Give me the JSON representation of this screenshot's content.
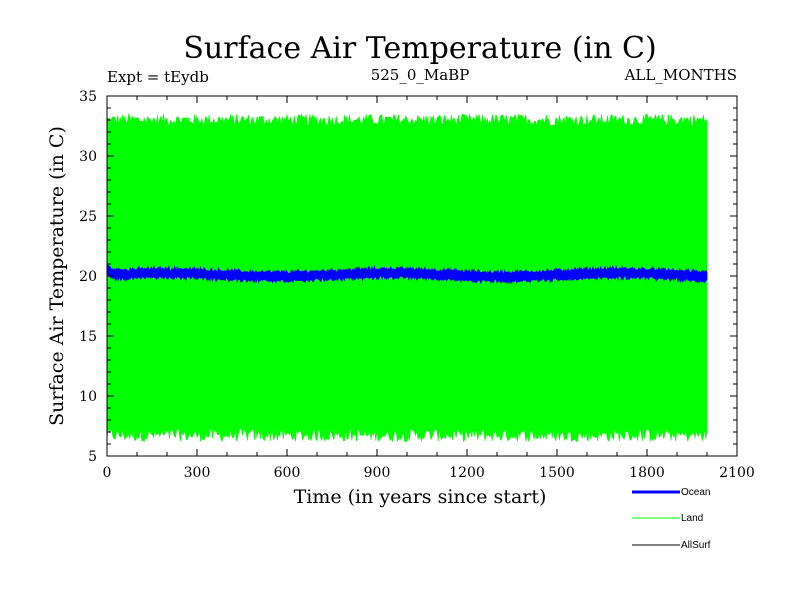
{
  "chart_data": {
    "type": "line",
    "title": "Surface Air Temperature (in C)",
    "experiment": "Expt = tEydb",
    "run_label": "525_0_MaBP",
    "season": "ALL_MONTHS",
    "xlabel": "Time (in years since start)",
    "ylabel": "Surface Air Temperature (in C)",
    "xlim": [
      0,
      2100
    ],
    "ylim": [
      5,
      35
    ],
    "x_ticks": [
      0,
      300,
      600,
      900,
      1200,
      1500,
      1800,
      2100
    ],
    "y_ticks": [
      5,
      10,
      15,
      20,
      25,
      30,
      35
    ],
    "x_tick_labels": [
      "0",
      "300",
      "600",
      "900",
      "1200",
      "1500",
      "1800",
      "2100"
    ],
    "y_tick_labels": [
      "5",
      "10",
      "15",
      "20",
      "25",
      "30",
      "35"
    ],
    "series": [
      {
        "name": "Land",
        "color": "#00ff00",
        "x_range": [
          0,
          2000
        ],
        "min_envelope": 6.8,
        "max_envelope": 33.4,
        "mean": 20.1
      },
      {
        "name": "Ocean",
        "color": "#0000ff",
        "x_range": [
          0,
          2000
        ],
        "start_value": 20.6,
        "min": 19.5,
        "max": 20.8,
        "mean": 20.1
      },
      {
        "name": "AllSurf",
        "color": "#000000",
        "x_range": [
          0,
          2000
        ],
        "mean": 20.1
      }
    ],
    "legend": [
      {
        "label": "Ocean",
        "color": "#0000ff"
      },
      {
        "label": "Land",
        "color": "#00ff00"
      },
      {
        "label": "AllSurf",
        "color": "#000000"
      }
    ]
  }
}
